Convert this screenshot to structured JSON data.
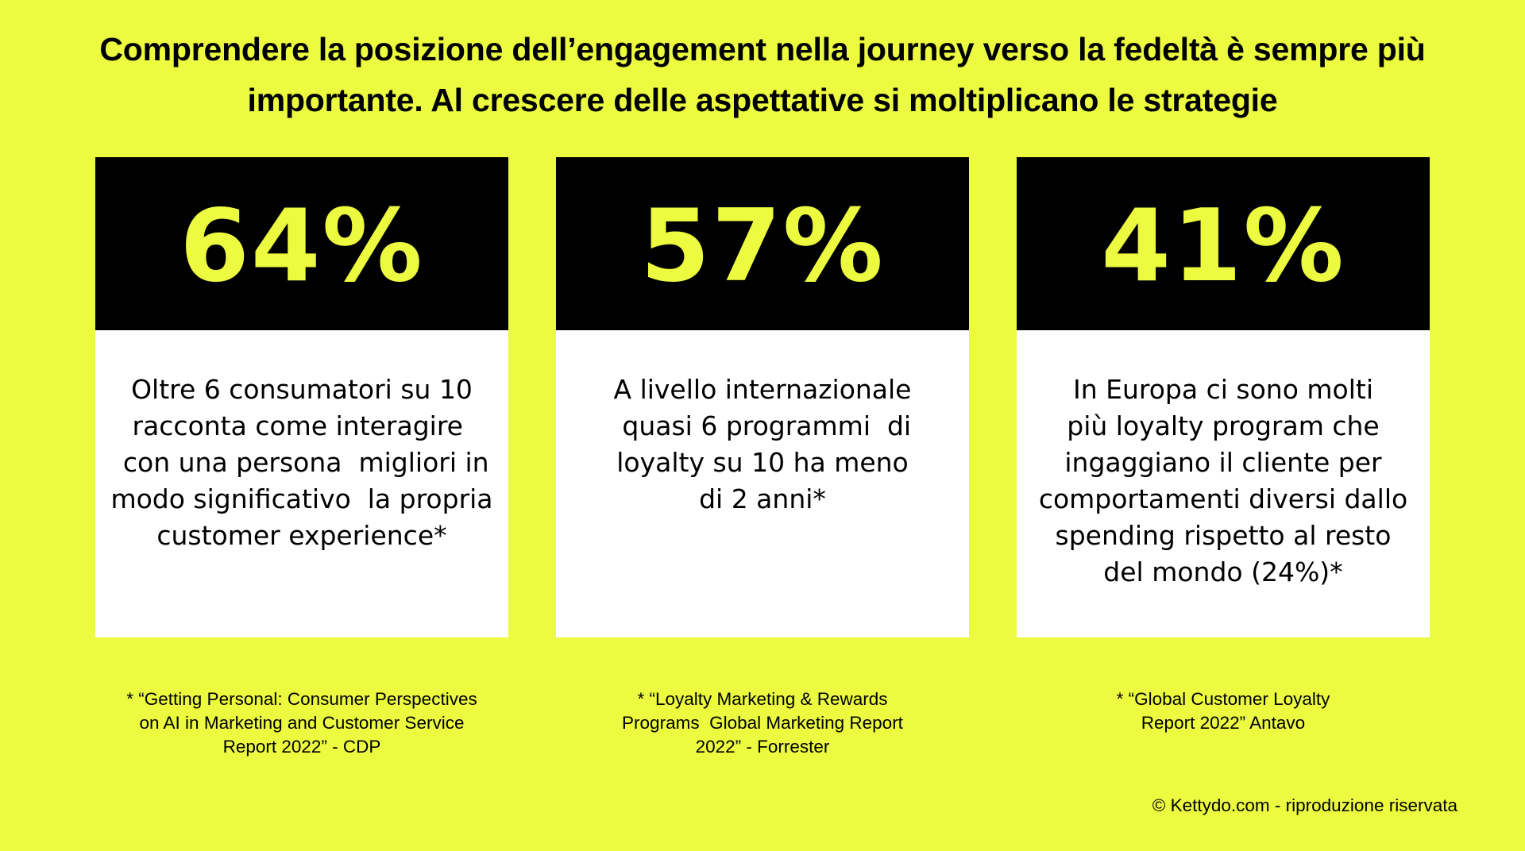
{
  "title": {
    "lines": [
      "Comprendere la posizione dell’engagement nella journey verso la fedeltà è sempre più",
      "importante. Al crescere delle aspettative si moltiplicano le strategie"
    ]
  },
  "stats": [
    {
      "value": "64%",
      "description": [
        "Oltre 6 consumatori su 10",
        "racconta come interagire ",
        " con una persona  migliori in",
        "modo significativo  la propria",
        "customer experience*"
      ],
      "source": [
        "* “Getting Personal: Consumer Perspectives",
        "on AI in Marketing and Customer Service",
        "Report 2022” - CDP"
      ]
    },
    {
      "value": "57%",
      "description": [
        "A livello internazionale",
        " quasi 6 programmi  di",
        "loyalty su 10 ha meno",
        "di 2 anni*"
      ],
      "source": [
        "* “Loyalty Marketing & Rewards",
        "Programs  Global Marketing Report",
        "2022” - Forrester"
      ]
    },
    {
      "value": "41%",
      "description": [
        "In Europa ci sono molti",
        "più loyalty program che",
        "ingaggiano il cliente per",
        "comportamenti diversi dallo",
        "spending rispetto al resto",
        "del mondo (24%)*"
      ],
      "source": [
        "* “Global Customer Loyalty",
        "Report 2022” Antavo"
      ]
    }
  ],
  "copyright": "© Kettydo.com - riproduzione riservata",
  "colors": {
    "background": "#ecfb3f",
    "card_header": "#000000",
    "stat_text": "#ecfb3f",
    "card_body": "#ffffff"
  }
}
